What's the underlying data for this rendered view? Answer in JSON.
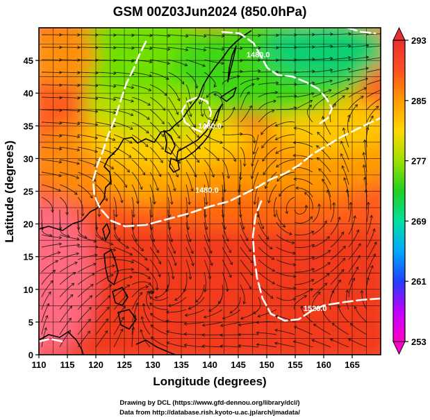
{
  "title": "GSM 00Z03Jun2024 (850.0hPa)",
  "x_axis": {
    "label": "Longitude (degrees)",
    "range": [
      110,
      170
    ],
    "ticks": [
      110,
      115,
      120,
      125,
      130,
      135,
      140,
      145,
      150,
      155,
      160,
      165
    ]
  },
  "y_axis": {
    "label": "Latitude  (degrees)",
    "range": [
      0,
      50
    ],
    "ticks": [
      0,
      5,
      10,
      15,
      20,
      25,
      30,
      35,
      40,
      45
    ]
  },
  "colorbar": {
    "ticks": [
      253,
      261,
      269,
      277,
      285,
      293
    ],
    "range": [
      253,
      293
    ],
    "colors": [
      "#ff00c8",
      "#c000ff",
      "#2040ff",
      "#00a8ff",
      "#00e0a0",
      "#20d020",
      "#a0e000",
      "#ffd800",
      "#ff9a00",
      "#ff5020",
      "#e83030"
    ]
  },
  "contours": {
    "labels": [
      {
        "text": "1480.0",
        "lon": 140.0,
        "lat": 34.6
      },
      {
        "text": "1480.0",
        "lon": 148.5,
        "lat": 45.5
      },
      {
        "text": "1480.0",
        "lon": 139.5,
        "lat": 24.8
      },
      {
        "text": "1520.0",
        "lon": 158.5,
        "lat": 6.7
      }
    ]
  },
  "credits": {
    "line1": "Drawing by DCL (https://www.gfd-dennou.org/library/dcl/)",
    "line2": "Data from http://database.rish.kyoto-u.ac.jp/arch/jmadata/"
  }
}
